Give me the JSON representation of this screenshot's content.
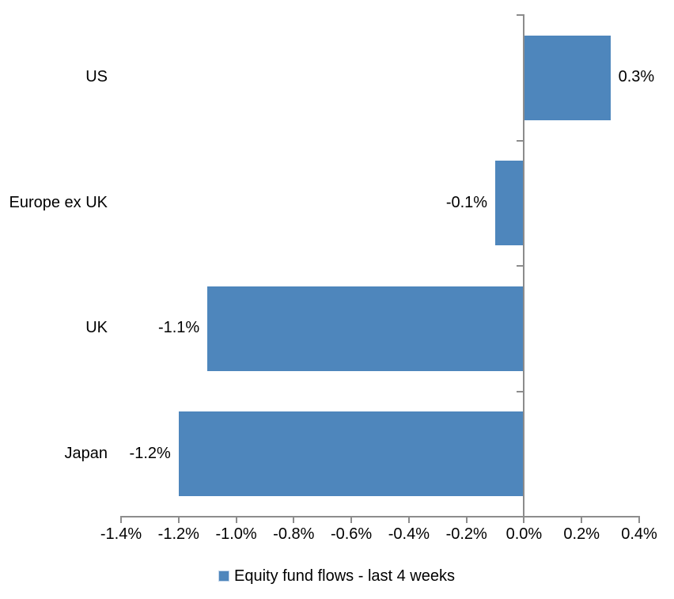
{
  "chart_data": {
    "type": "bar",
    "orientation": "horizontal",
    "categories": [
      "US",
      "Europe ex UK",
      "UK",
      "Japan"
    ],
    "values": [
      0.3,
      -0.1,
      -1.1,
      -1.2
    ],
    "value_labels": [
      "0.3%",
      "-0.1%",
      "-1.1%",
      "-1.2%"
    ],
    "unit": "%",
    "title": "",
    "xlabel": "",
    "ylabel": "",
    "grid": false,
    "axis": {
      "min": -1.4,
      "max": 0.4,
      "step": 0.2,
      "tick_labels": [
        "-1.4%",
        "-1.2%",
        "-1.0%",
        "-0.8%",
        "-0.6%",
        "-0.4%",
        "-0.2%",
        "0.0%",
        "0.2%",
        "0.4%"
      ]
    },
    "legend": {
      "label": "Equity fund flows - last 4 weeks",
      "position": "bottom",
      "marker": "square"
    },
    "colors": {
      "bar": "#4E86BC",
      "axis": "#8C8C8C",
      "text": "#000000",
      "background": "#FFFFFF"
    }
  }
}
